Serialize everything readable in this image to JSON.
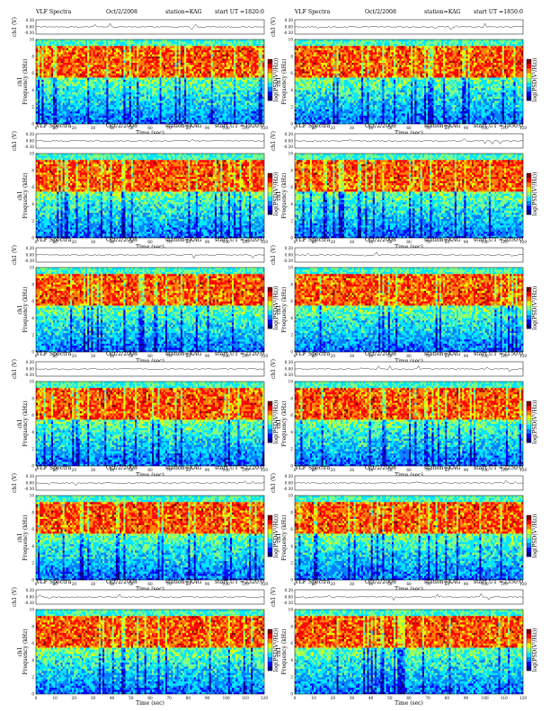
{
  "page": {
    "background": "#ffffff"
  },
  "colormap": [
    "#00007f",
    "#0000ff",
    "#007fff",
    "#00e5ff",
    "#7fff7f",
    "#e5ff00",
    "#ff7f00",
    "#ff0000",
    "#7f0000"
  ],
  "panels": [
    {
      "title": "VLF Spectra",
      "date": "Oct/2/2008",
      "station": "station=KAG",
      "start": "start UT =1820:0"
    },
    {
      "title": "VLF Spectra",
      "date": "Oct/2/2008",
      "station": "station=KAG",
      "start": "start UT =1850:0"
    },
    {
      "title": "VLF Spectra",
      "date": "Oct/2/2008",
      "station": "station=KAG",
      "start": "start UT =1920:0"
    },
    {
      "title": "VLF Spectra",
      "date": "Oct/2/2008",
      "station": "station=KAG",
      "start": "start UT =1950:0"
    },
    {
      "title": "VLF Spectra",
      "date": "Oct/2/2008",
      "station": "station=KAG",
      "start": "start UT =2020:0"
    },
    {
      "title": "VLF Spectra",
      "date": "Oct/2/2008",
      "station": "station=KAG",
      "start": "start UT =2050:0"
    },
    {
      "title": "VLF Spectra",
      "date": "Oct/2/2008",
      "station": "station=KAG",
      "start": "start UT =2120:0"
    },
    {
      "title": "VLF Spectra",
      "date": "Oct/2/2008",
      "station": "station=KAG",
      "start": "start UT =2150:0"
    },
    {
      "title": "VLF Spectra",
      "date": "Oct/2/2008",
      "station": "station=KAG",
      "start": "start UT =2220:0"
    },
    {
      "title": "VLF Spectra",
      "date": "Oct/2/2008",
      "station": "station=KAG",
      "start": "start UT =2250:0"
    },
    {
      "title": "VLF Spectra",
      "date": "Oct/2/2008",
      "station": "station=KAG",
      "start": "start UT =2320:0"
    },
    {
      "title": "VLF Spectra",
      "date": "Oct/2/2008",
      "station": "station=KAG",
      "start": "start UT =2350:0"
    }
  ],
  "chart_data": {
    "type": "heatmap",
    "panel_count": 12,
    "xlabel": "Time (sec)",
    "ylabel": "Frequency (kHz)",
    "ylabel_prefix": "ch1",
    "waveform_label": "ch1 (V)",
    "colorbar_label": "log(PSD(V²/Hz))",
    "xlim": [
      0,
      120
    ],
    "ylim_frequency": [
      0,
      10
    ],
    "ylim_waveform": [
      -0.3,
      0.3
    ],
    "x_ticks": [
      "0",
      "10",
      "20",
      "30",
      "40",
      "50",
      "60",
      "70",
      "80",
      "90",
      "100",
      "110",
      "120"
    ],
    "y_ticks": [
      "0",
      "2",
      "4",
      "6",
      "8",
      "10"
    ],
    "waveform_ticks": [
      "0.30",
      "0.00",
      "-0.30"
    ],
    "colorbar_range": [
      -7,
      -5
    ]
  }
}
